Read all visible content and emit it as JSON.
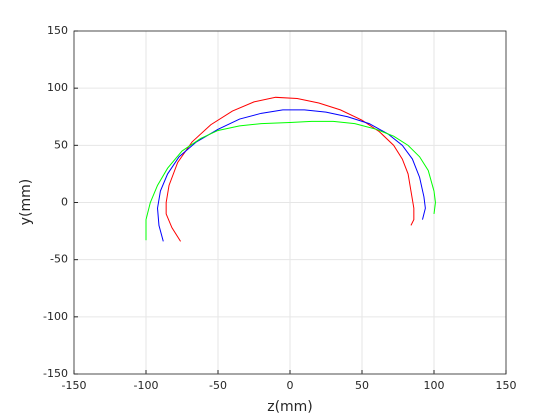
{
  "chart_data": {
    "type": "line",
    "xlabel": "z(mm)",
    "ylabel": "y(mm)",
    "xlim": [
      -150,
      150
    ],
    "ylim": [
      -150,
      150
    ],
    "xticks": [
      -150,
      -100,
      -50,
      0,
      50,
      100,
      150
    ],
    "yticks": [
      -150,
      -100,
      -50,
      0,
      50,
      100,
      150
    ],
    "grid": true,
    "series": [
      {
        "color": "#ff0000",
        "x": [
          -76,
          -82,
          -86,
          -86,
          -84,
          -78,
          -68,
          -55,
          -40,
          -25,
          -10,
          5,
          20,
          35,
          50,
          62,
          72,
          78,
          82,
          84,
          86,
          86,
          84
        ],
        "values": [
          -34,
          -22,
          -10,
          0,
          15,
          35,
          53,
          68,
          80,
          88,
          92,
          91,
          87,
          81,
          72,
          62,
          50,
          38,
          25,
          10,
          -5,
          -15,
          -20
        ]
      },
      {
        "color": "#0000ff",
        "x": [
          -88,
          -91,
          -92,
          -90,
          -85,
          -77,
          -65,
          -50,
          -35,
          -20,
          -5,
          10,
          25,
          40,
          55,
          68,
          78,
          85,
          90,
          93,
          94,
          92
        ],
        "values": [
          -34,
          -20,
          -5,
          10,
          25,
          40,
          53,
          64,
          73,
          78,
          81,
          81,
          79,
          75,
          69,
          60,
          50,
          38,
          22,
          5,
          -5,
          -15
        ]
      },
      {
        "color": "#00ff00",
        "x": [
          -100,
          -100,
          -97,
          -92,
          -85,
          -75,
          -62,
          -50,
          -35,
          -20,
          0,
          15,
          30,
          45,
          60,
          72,
          82,
          90,
          96,
          100,
          101,
          100
        ],
        "values": [
          -33,
          -15,
          0,
          15,
          30,
          45,
          56,
          63,
          67,
          69,
          70,
          71,
          71,
          69,
          64,
          58,
          50,
          40,
          28,
          10,
          0,
          -10
        ]
      }
    ]
  }
}
